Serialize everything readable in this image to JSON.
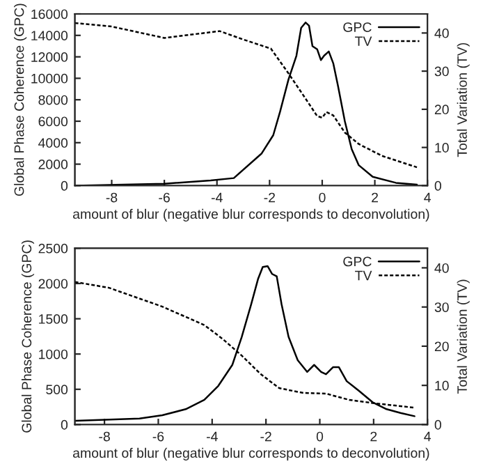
{
  "chart_data": [
    {
      "type": "line",
      "xlabel": "amount of blur (negative blur corresponds to deconvolution)",
      "ylabel": "Global Phase Coherence (GPC)",
      "y2label": "Total Variation (TV)",
      "xlim": [
        -9.4,
        4
      ],
      "xticks": [
        -8,
        -6,
        -4,
        -2,
        0,
        2,
        4
      ],
      "ylim": [
        0,
        16000
      ],
      "yticks": [
        0,
        2000,
        4000,
        6000,
        8000,
        10000,
        12000,
        14000,
        16000
      ],
      "y2lim": [
        0,
        45
      ],
      "y2ticks": [
        0,
        10,
        20,
        30,
        40
      ],
      "legend": "top right",
      "grid": false,
      "series": [
        {
          "name": "GPC",
          "color": "#000000",
          "line_style": "solid",
          "x": [
            -9.4,
            -6,
            -4.24,
            -3.36,
            -2.3,
            -1.86,
            -1.6,
            -1.28,
            -0.98,
            -0.8,
            -0.63,
            -0.5,
            -0.37,
            -0.19,
            -0.05,
            0.07,
            0.25,
            0.42,
            0.6,
            0.86,
            1.12,
            1.39,
            1.92,
            2.8,
            3.6
          ],
          "values": [
            0,
            170,
            480,
            700,
            3000,
            4700,
            6900,
            9900,
            12100,
            14700,
            15200,
            14900,
            13000,
            12700,
            11700,
            12100,
            12500,
            11400,
            9300,
            6000,
            3400,
            1900,
            820,
            260,
            90
          ]
        },
        {
          "name": "TV",
          "color": "#000000",
          "line_style": "dashed",
          "axis": "y2",
          "x": [
            -9.4,
            -8,
            -6,
            -3.9,
            -3,
            -1.95,
            -1.25,
            -0.72,
            -0.19,
            0,
            0.16,
            0.42,
            0.86,
            1.39,
            2.27,
            3.6
          ],
          "values": [
            42.6,
            41.7,
            38.7,
            40.5,
            38.3,
            35.9,
            29.1,
            23.7,
            18.2,
            17.8,
            19.3,
            18.4,
            13.9,
            10.9,
            7.8,
            4.8
          ]
        }
      ]
    },
    {
      "type": "line",
      "xlabel": "amount of blur (negative blur corresponds to deconvolution)",
      "ylabel": "Global Phase Coherence (GPC)",
      "y2label": "Total Variation (TV)",
      "xlim": [
        -9.1,
        4
      ],
      "xticks": [
        -8,
        -6,
        -4,
        -2,
        0,
        2,
        4
      ],
      "ylim": [
        0,
        2500
      ],
      "yticks": [
        0,
        500,
        1000,
        1500,
        2000,
        2500
      ],
      "y2lim": [
        0,
        45
      ],
      "y2ticks": [
        0,
        10,
        20,
        30,
        40
      ],
      "legend": "top right",
      "grid": false,
      "series": [
        {
          "name": "GPC",
          "color": "#000000",
          "line_style": "solid",
          "x": [
            -9.1,
            -6.7,
            -5.85,
            -4.98,
            -4.29,
            -3.77,
            -3.25,
            -2.9,
            -2.55,
            -2.29,
            -2.12,
            -1.94,
            -1.77,
            -1.6,
            -1.42,
            -1.16,
            -0.82,
            -0.47,
            -0.21,
            0.05,
            0.23,
            0.49,
            0.71,
            1.0,
            1.44,
            1.96,
            2.48,
            3.0,
            3.52
          ],
          "values": [
            53,
            86,
            132,
            218,
            350,
            549,
            846,
            1243,
            1705,
            2069,
            2234,
            2247,
            2135,
            2102,
            1705,
            1243,
            912,
            747,
            846,
            747,
            714,
            813,
            813,
            615,
            483,
            317,
            218,
            165,
            119
          ]
        },
        {
          "name": "TV",
          "color": "#000000",
          "line_style": "dashed",
          "axis": "y2",
          "x": [
            -9.1,
            -7.83,
            -5.85,
            -4.29,
            -3.6,
            -2.9,
            -2.2,
            -1.51,
            -0.64,
            0.23,
            1.09,
            1.96,
            3.52
          ],
          "values": [
            36.4,
            34.9,
            30.1,
            25.4,
            21.8,
            17.6,
            12.9,
            9.3,
            8.1,
            7.9,
            6.3,
            5.5,
            4.3
          ]
        }
      ]
    }
  ]
}
